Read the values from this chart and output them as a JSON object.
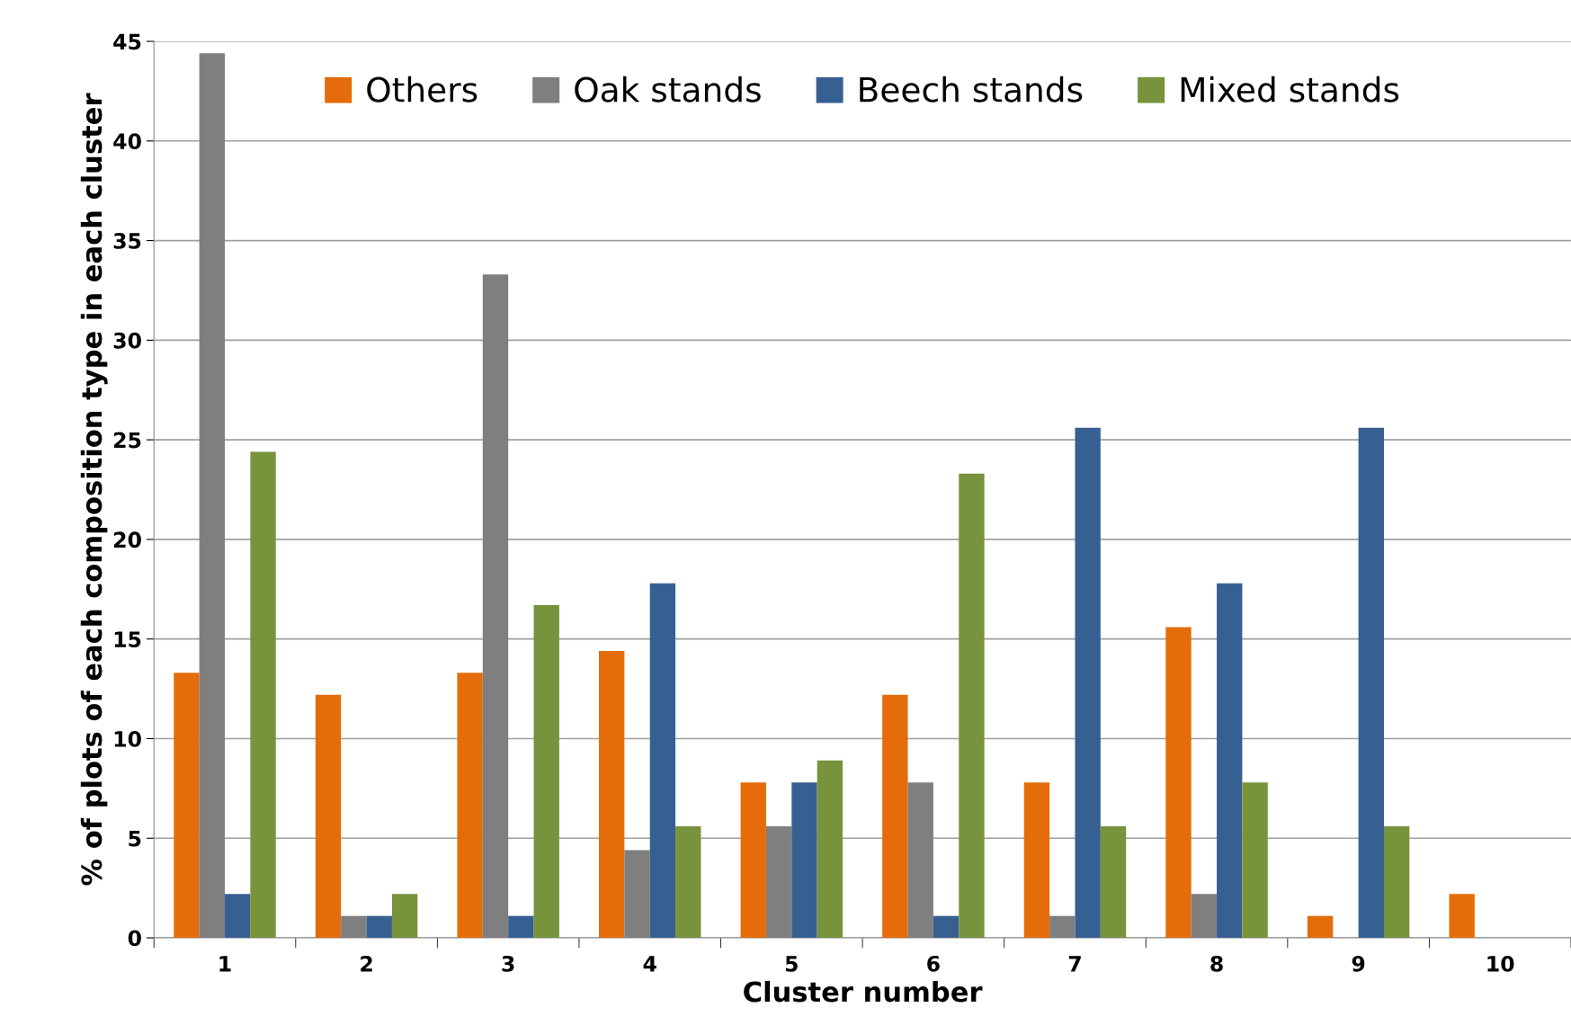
{
  "chart_data": {
    "type": "bar",
    "xlabel": "Cluster number",
    "ylabel": "% of plots of each composition type in each cluster",
    "categories": [
      "1",
      "2",
      "3",
      "4",
      "5",
      "6",
      "7",
      "8",
      "9",
      "10"
    ],
    "series": [
      {
        "name": "Others",
        "color": "#e46c0a",
        "values": [
          13.3,
          12.2,
          13.3,
          14.4,
          7.8,
          12.2,
          7.8,
          15.6,
          1.1,
          2.2
        ]
      },
      {
        "name": "Oak stands",
        "color": "#7f7f7f",
        "values": [
          44.4,
          1.1,
          33.3,
          4.4,
          5.6,
          7.8,
          1.1,
          2.2,
          0,
          0
        ]
      },
      {
        "name": "Beech stands",
        "color": "#366092",
        "values": [
          2.2,
          1.1,
          1.1,
          17.8,
          7.8,
          1.1,
          25.6,
          17.8,
          25.6,
          0
        ]
      },
      {
        "name": "Mixed stands",
        "color": "#77933c",
        "values": [
          24.4,
          2.2,
          16.7,
          5.6,
          8.9,
          23.3,
          5.6,
          7.8,
          5.6,
          0
        ]
      }
    ],
    "ylim": [
      0,
      45
    ],
    "yticks": [
      0,
      5,
      10,
      15,
      20,
      25,
      30,
      35,
      40,
      45
    ],
    "grid": "y",
    "legend": "top"
  }
}
